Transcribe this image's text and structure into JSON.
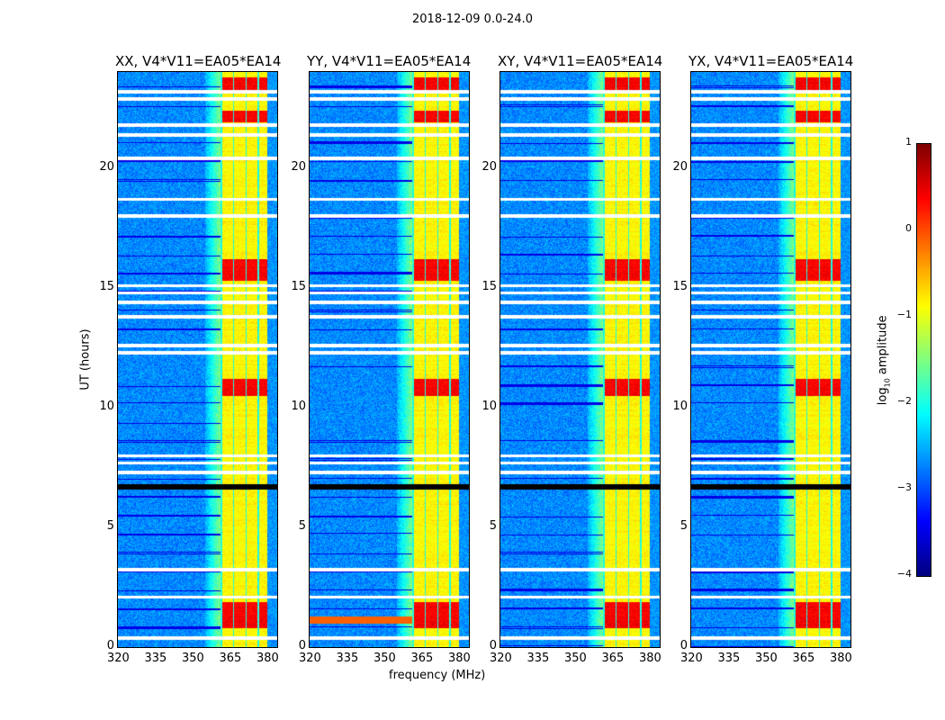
{
  "chart_data": {
    "type": "heatmap",
    "title": "2018-12-09 0.0-24.0",
    "panels": [
      {
        "title": "XX, V4*V11=EA05*EA14"
      },
      {
        "title": "YY, V4*V11=EA05*EA14"
      },
      {
        "title": "XY, V4*V11=EA05*EA14"
      },
      {
        "title": "YX, V4*V11=EA05*EA14"
      }
    ],
    "xlabel": "frequency (MHz)",
    "ylabel": "UT (hours)",
    "xlim": [
      320,
      384
    ],
    "ylim": [
      0,
      24
    ],
    "xticks": [
      "320",
      "335",
      "350",
      "365",
      "380"
    ],
    "xtick_values": [
      320,
      335,
      350,
      365,
      380
    ],
    "yticks": [
      "0",
      "5",
      "10",
      "15",
      "20"
    ],
    "ytick_values": [
      0,
      5,
      10,
      15,
      20
    ],
    "colorbar": {
      "label": "log10 amplitude",
      "label_main": "log",
      "label_sub": "10",
      "label_rest": " amplitude",
      "range": [
        -4,
        1
      ],
      "ticks": [
        "1",
        "0",
        "−1",
        "−2",
        "−3",
        "−4"
      ],
      "tick_values": [
        1,
        0,
        -1,
        -2,
        -3,
        -4
      ],
      "colormap": "jet"
    },
    "strong_band_mhz": [
      361,
      380
    ],
    "flagged_ut_hours": [
      0.4,
      2.1,
      3.25,
      7.3,
      7.7,
      8.0,
      12.3,
      12.6,
      13.8,
      14.4,
      14.8,
      15.1,
      18.0,
      18.7,
      20.4,
      21.4,
      21.8,
      22.9,
      23.2
    ],
    "gap_ut_hours": [
      6.7
    ]
  }
}
